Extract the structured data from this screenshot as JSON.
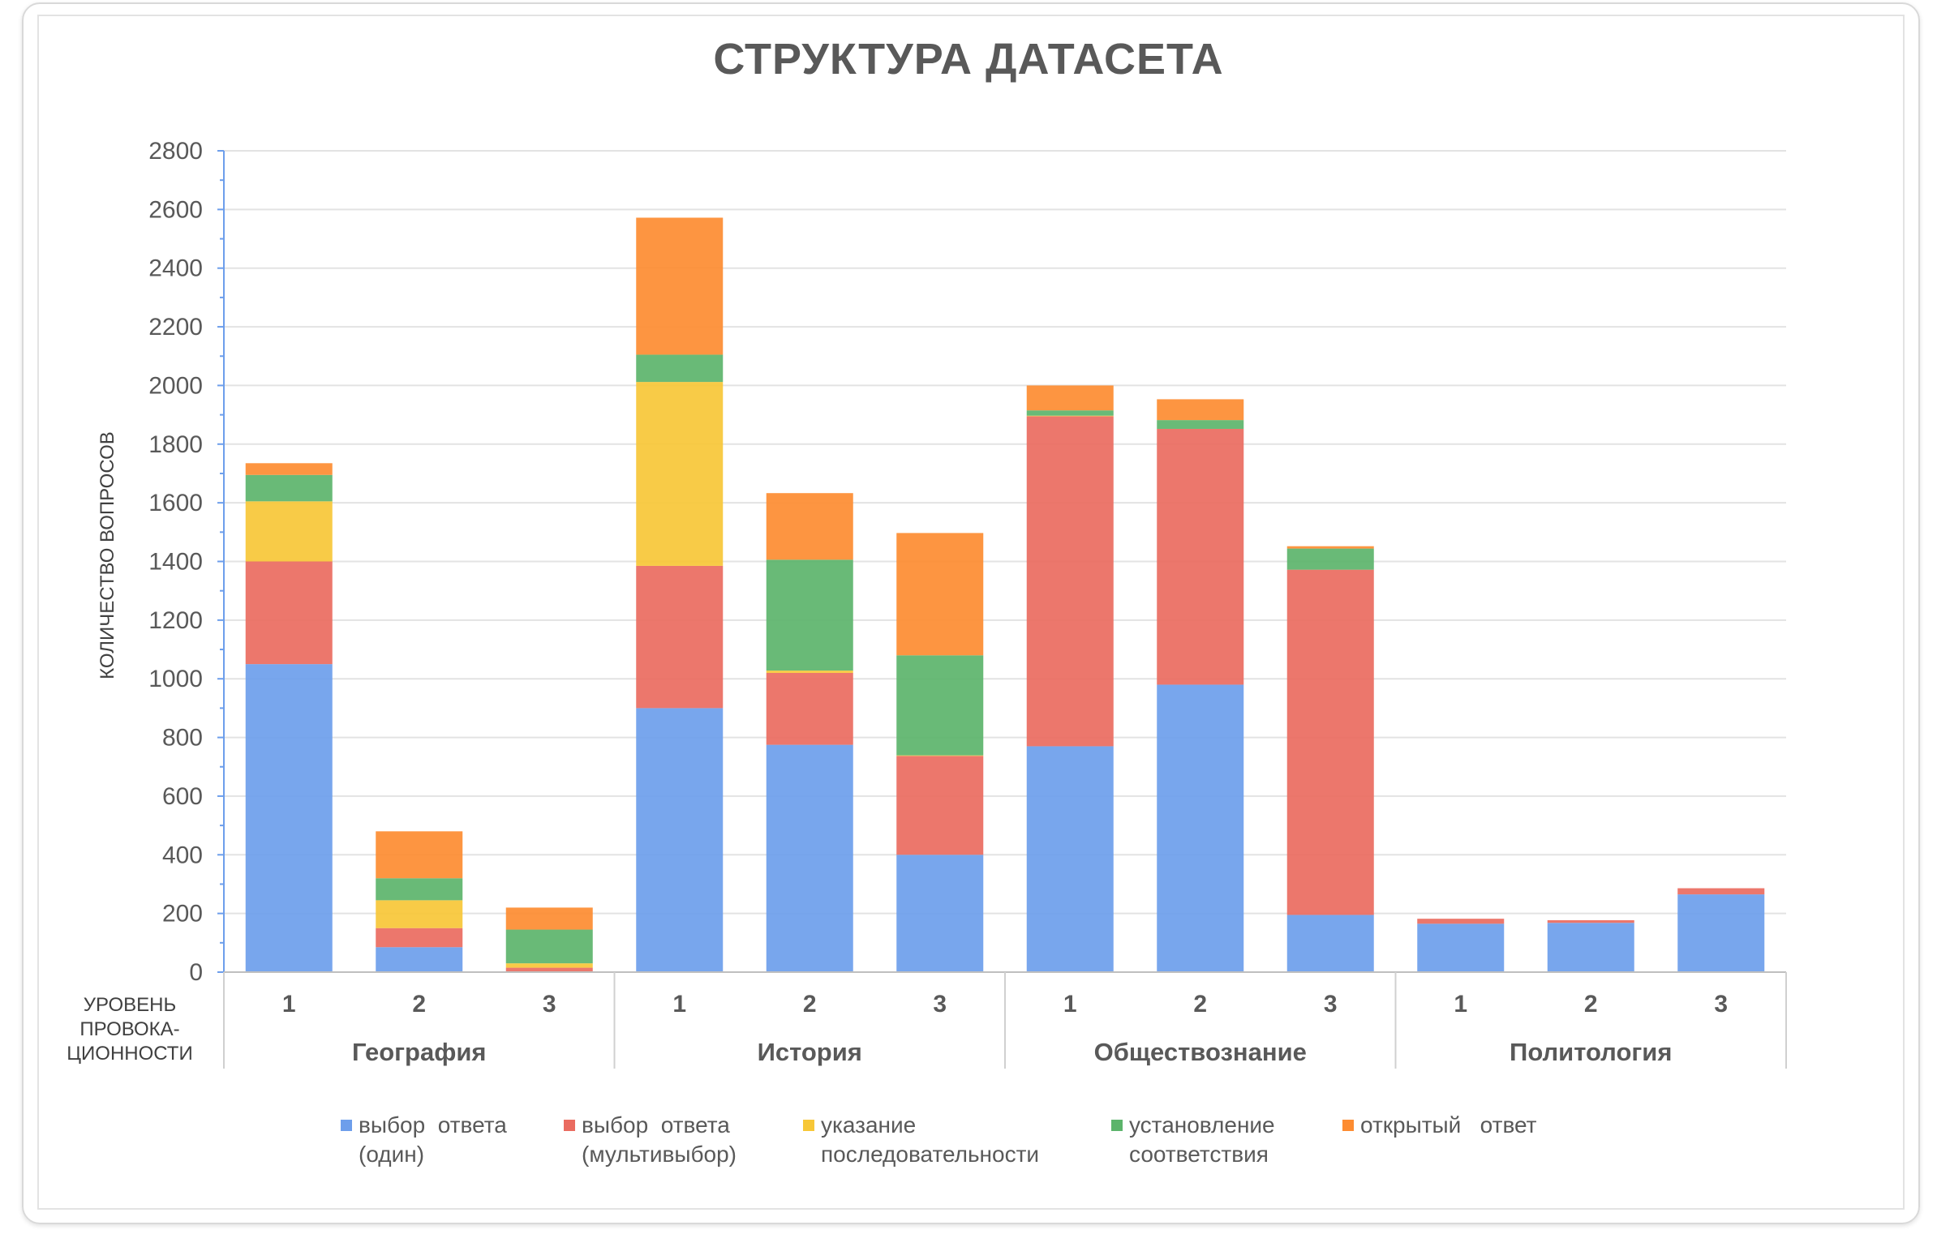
{
  "chart_data": {
    "type": "bar",
    "stacked": true,
    "title": "СТРУКТУРА ДАТАСЕТА",
    "ylabel": "КОЛИЧЕСТВО ВОПРОСОВ",
    "xlabel": "УРОВЕНЬ ПРОВОКА- ЦИОННОСТИ",
    "xlabel_lines": [
      "УРОВЕНЬ",
      "ПРОВОКА-",
      "ЦИОННОСТИ"
    ],
    "ylim": [
      0,
      2800
    ],
    "yticks": [
      0,
      200,
      400,
      600,
      800,
      1000,
      1200,
      1400,
      1600,
      1800,
      2000,
      2200,
      2400,
      2600,
      2800
    ],
    "grid": true,
    "legend_position": "bottom",
    "groups": [
      {
        "name": "География",
        "levels": [
          "1",
          "2",
          "3"
        ]
      },
      {
        "name": "История",
        "levels": [
          "1",
          "2",
          "3"
        ]
      },
      {
        "name": "Обществознание",
        "levels": [
          "1",
          "2",
          "3"
        ]
      },
      {
        "name": "Политология",
        "levels": [
          "1",
          "2",
          "3"
        ]
      }
    ],
    "series": [
      {
        "name": "выбор ответа (один)",
        "name_lines": [
          "выбор  ответа",
          "(один)"
        ],
        "color": "#6d9eeb",
        "values": [
          1050,
          85,
          0,
          900,
          775,
          400,
          770,
          980,
          195,
          165,
          168,
          265
        ]
      },
      {
        "name": "выбор ответа (мультивыбор)",
        "name_lines": [
          "выбор  ответа",
          "(мультивыбор)"
        ],
        "color": "#ea6b60",
        "values": [
          350,
          65,
          15,
          485,
          245,
          337,
          1125,
          872,
          1177,
          17,
          9,
          21
        ]
      },
      {
        "name": "указание последовательности",
        "name_lines": [
          "указание",
          "последовательности"
        ],
        "color": "#f7c737",
        "values": [
          205,
          95,
          15,
          627,
          8,
          2,
          2,
          0,
          0,
          0,
          0,
          0
        ]
      },
      {
        "name": "установление соответствия",
        "name_lines": [
          "установление",
          "соответствия"
        ],
        "color": "#5cb46b",
        "values": [
          90,
          75,
          115,
          93,
          378,
          341,
          18,
          30,
          72,
          0,
          0,
          0
        ]
      },
      {
        "name": "открытый ответ",
        "name_lines": [
          "открытый   ответ"
        ],
        "color": "#fd8c31",
        "values": [
          40,
          160,
          75,
          467,
          227,
          417,
          85,
          71,
          8,
          0,
          0,
          0
        ]
      }
    ]
  }
}
